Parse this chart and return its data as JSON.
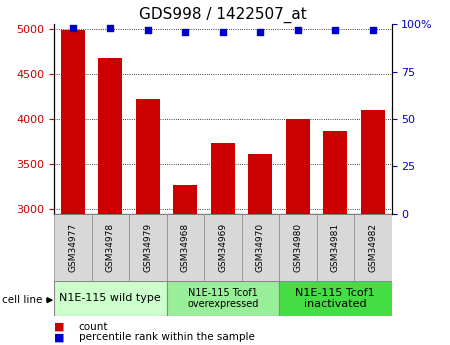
{
  "title": "GDS998 / 1422507_at",
  "samples": [
    "GSM34977",
    "GSM34978",
    "GSM34979",
    "GSM34968",
    "GSM34969",
    "GSM34970",
    "GSM34980",
    "GSM34981",
    "GSM34982"
  ],
  "counts": [
    4980,
    4670,
    4220,
    3270,
    3740,
    3610,
    4000,
    3870,
    4100
  ],
  "percentiles": [
    98,
    98,
    97,
    96,
    96,
    96,
    97,
    97,
    97
  ],
  "bar_color": "#cc0000",
  "dot_color": "#0000cc",
  "ylim_left": [
    2950,
    5050
  ],
  "ylim_right": [
    0,
    100
  ],
  "yticks_left": [
    3000,
    3500,
    4000,
    4500,
    5000
  ],
  "yticks_right": [
    0,
    25,
    50,
    75,
    100
  ],
  "cell_groups": [
    {
      "label": "N1E-115 wild type",
      "start": 0,
      "end": 3,
      "color": "#ccffcc",
      "fontsize": 8
    },
    {
      "label": "N1E-115 Tcof1\noverexpressed",
      "start": 3,
      "end": 6,
      "color": "#99ee99",
      "fontsize": 7
    },
    {
      "label": "N1E-115 Tcof1\ninactivated",
      "start": 6,
      "end": 9,
      "color": "#44dd44",
      "fontsize": 8
    }
  ],
  "cell_line_label": "cell line",
  "legend_count_label": "count",
  "legend_percentile_label": "percentile rank within the sample",
  "bg_color": "#ffffff",
  "tick_label_color_left": "#cc0000",
  "tick_label_color_right": "#0000cc",
  "title_fontsize": 11,
  "tick_fontsize": 8,
  "sample_box_color": "#d8d8d8",
  "bar_bottom": 3000
}
